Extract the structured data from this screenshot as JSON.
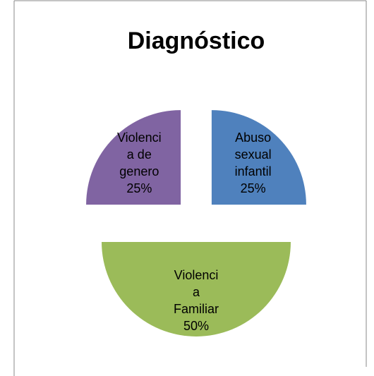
{
  "chart_data": {
    "type": "pie",
    "title": "Diagnóstico",
    "categories": [
      "Abuso sexual infantil",
      "Violencia Familiar",
      "Violencia de genero"
    ],
    "values": [
      25,
      50,
      25
    ],
    "value_labels": [
      "25%",
      "50%",
      "25%"
    ],
    "colors": [
      "#4f81bd",
      "#9bbb59",
      "#8064a2"
    ]
  }
}
